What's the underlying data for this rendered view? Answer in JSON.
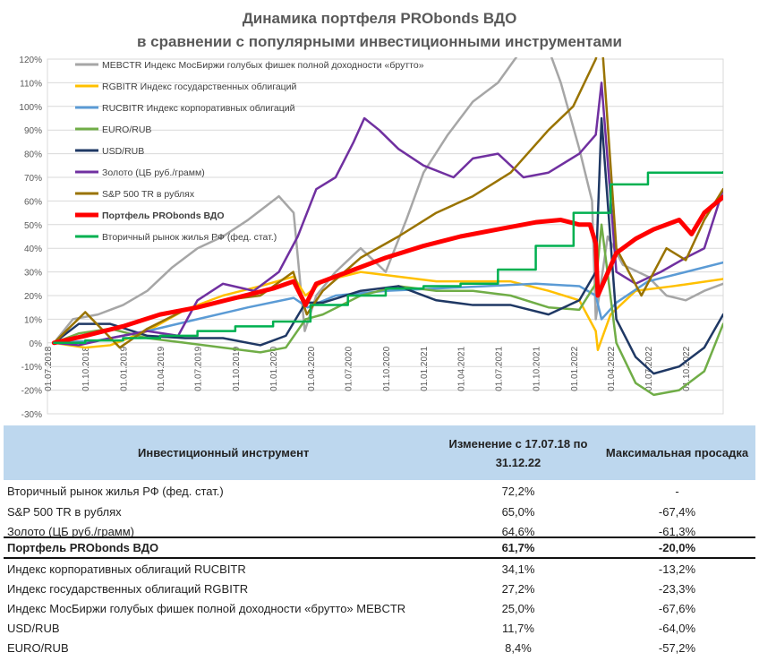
{
  "titles": {
    "line1": "Динамика портфеля PRObonds ВДО",
    "line2": "в сравнении с популярными инвестиционными инструментами"
  },
  "chart_data": {
    "type": "line",
    "ylim": [
      -30,
      120
    ],
    "yticks": [
      "120%",
      "110%",
      "100%",
      "90%",
      "80%",
      "70%",
      "60%",
      "50%",
      "40%",
      "30%",
      "20%",
      "10%",
      "0%",
      "-10%",
      "-20%",
      "-30%"
    ],
    "ytick_values": [
      120,
      110,
      100,
      90,
      80,
      70,
      60,
      50,
      40,
      30,
      20,
      10,
      0,
      -10,
      -20,
      -30
    ],
    "xlim": [
      "2018-07-01",
      "2022-12-31"
    ],
    "xticks": [
      "01.07.2018",
      "01.10.2018",
      "01.01.2019",
      "01.04.2019",
      "01.07.2019",
      "01.10.2019",
      "01.01.2020",
      "01.04.2020",
      "01.07.2020",
      "01.10.2020",
      "01.01.2021",
      "01.04.2021",
      "01.07.2021",
      "01.10.2021",
      "01.01.2022",
      "01.04.2022",
      "01.07.2022",
      "01.10.2022"
    ],
    "legend_position": "top-left",
    "series": [
      {
        "name": "MEBCTR Индекс МосБиржи голубых фишек полной доходности «брутто»",
        "color": "#a6a6a6",
        "width": 2.5,
        "x": [
          "2018-07-17",
          "2018-09-01",
          "2018-11-01",
          "2019-01-01",
          "2019-03-01",
          "2019-05-01",
          "2019-07-01",
          "2019-09-01",
          "2019-11-01",
          "2020-01-15",
          "2020-02-20",
          "2020-03-18",
          "2020-04-15",
          "2020-06-01",
          "2020-08-01",
          "2020-10-01",
          "2020-11-20",
          "2021-01-01",
          "2021-03-01",
          "2021-05-01",
          "2021-07-01",
          "2021-09-01",
          "2021-10-20",
          "2021-12-01",
          "2022-01-15",
          "2022-02-15",
          "2022-02-24",
          "2022-03-25",
          "2022-05-01",
          "2022-07-01",
          "2022-08-15",
          "2022-10-01",
          "2022-11-15",
          "2022-12-31"
        ],
        "y": [
          0,
          10,
          12,
          16,
          22,
          32,
          40,
          45,
          52,
          62,
          55,
          5,
          20,
          30,
          40,
          30,
          52,
          72,
          88,
          102,
          110,
          125,
          130,
          110,
          82,
          60,
          10,
          45,
          33,
          28,
          20,
          18,
          22,
          25
        ]
      },
      {
        "name": "RGBITR Индекс государственных облигаций",
        "color": "#ffc000",
        "width": 2.5,
        "x": [
          "2018-07-17",
          "2018-10-01",
          "2018-12-01",
          "2019-03-01",
          "2019-06-01",
          "2019-09-01",
          "2019-12-01",
          "2020-02-20",
          "2020-03-20",
          "2020-05-01",
          "2020-08-01",
          "2020-11-01",
          "2021-02-01",
          "2021-05-01",
          "2021-08-01",
          "2021-11-01",
          "2022-01-15",
          "2022-02-24",
          "2022-03-01",
          "2022-04-01",
          "2022-06-01",
          "2022-09-01",
          "2022-12-31"
        ],
        "y": [
          0,
          -2,
          -1,
          5,
          14,
          20,
          24,
          28,
          20,
          26,
          30,
          28,
          26,
          26,
          26,
          22,
          18,
          5,
          -3,
          12,
          22,
          24,
          27
        ]
      },
      {
        "name": "RUCBITR Индекс корпоративных облигаций",
        "color": "#5b9bd5",
        "width": 2.5,
        "x": [
          "2018-07-17",
          "2018-11-01",
          "2019-03-01",
          "2019-07-01",
          "2019-11-01",
          "2020-02-20",
          "2020-03-25",
          "2020-06-01",
          "2020-10-01",
          "2021-02-01",
          "2021-06-01",
          "2021-10-01",
          "2022-01-15",
          "2022-02-24",
          "2022-03-10",
          "2022-04-15",
          "2022-07-01",
          "2022-10-01",
          "2022-12-31"
        ],
        "y": [
          0,
          1,
          5,
          10,
          15,
          19,
          15,
          20,
          22,
          23,
          24,
          25,
          24,
          20,
          10,
          17,
          26,
          30,
          34
        ]
      },
      {
        "name": "EURO/RUB",
        "color": "#70ad47",
        "width": 2.5,
        "x": [
          "2018-07-17",
          "2018-09-15",
          "2018-12-01",
          "2019-03-01",
          "2019-06-01",
          "2019-09-01",
          "2019-12-01",
          "2020-02-01",
          "2020-03-20",
          "2020-05-01",
          "2020-08-01",
          "2020-11-01",
          "2021-02-01",
          "2021-05-01",
          "2021-08-01",
          "2021-11-01",
          "2022-01-15",
          "2022-02-24",
          "2022-03-10",
          "2022-04-15",
          "2022-06-01",
          "2022-07-15",
          "2022-09-15",
          "2022-11-15",
          "2022-12-31"
        ],
        "y": [
          0,
          4,
          6,
          2,
          0,
          -2,
          -4,
          -2,
          10,
          12,
          20,
          24,
          22,
          22,
          20,
          15,
          14,
          25,
          50,
          0,
          -17,
          -22,
          -20,
          -12,
          8
        ]
      },
      {
        "name": "USD/RUB",
        "color": "#1f3864",
        "width": 2.5,
        "x": [
          "2018-07-17",
          "2018-09-15",
          "2018-12-01",
          "2019-03-01",
          "2019-06-01",
          "2019-09-01",
          "2019-12-01",
          "2020-02-01",
          "2020-03-20",
          "2020-05-01",
          "2020-08-01",
          "2020-11-01",
          "2021-02-01",
          "2021-05-01",
          "2021-08-01",
          "2021-11-01",
          "2022-01-15",
          "2022-02-24",
          "2022-03-10",
          "2022-04-15",
          "2022-06-01",
          "2022-07-15",
          "2022-09-15",
          "2022-11-15",
          "2022-12-31"
        ],
        "y": [
          0,
          8,
          8,
          3,
          2,
          2,
          -1,
          3,
          17,
          17,
          22,
          24,
          18,
          16,
          16,
          12,
          18,
          30,
          95,
          10,
          -6,
          -13,
          -10,
          -2,
          12
        ]
      },
      {
        "name": "Золото (ЦБ руб./грамм)",
        "color": "#7030a0",
        "width": 2.5,
        "x": [
          "2018-07-17",
          "2018-09-15",
          "2018-12-01",
          "2019-03-01",
          "2019-05-15",
          "2019-07-01",
          "2019-09-01",
          "2019-11-15",
          "2020-01-15",
          "2020-03-01",
          "2020-04-15",
          "2020-06-01",
          "2020-07-15",
          "2020-08-10",
          "2020-09-15",
          "2020-11-01",
          "2021-01-01",
          "2021-03-15",
          "2021-05-01",
          "2021-07-01",
          "2021-09-01",
          "2021-11-01",
          "2022-01-15",
          "2022-02-24",
          "2022-03-10",
          "2022-04-15",
          "2022-06-01",
          "2022-08-01",
          "2022-10-01",
          "2022-11-15",
          "2022-12-31"
        ],
        "y": [
          0,
          -1,
          2,
          5,
          3,
          18,
          25,
          22,
          30,
          45,
          65,
          70,
          85,
          95,
          90,
          82,
          75,
          70,
          78,
          80,
          70,
          72,
          80,
          88,
          110,
          30,
          25,
          30,
          36,
          40,
          65
        ]
      },
      {
        "name": "S&P 500 TR в рублях",
        "color": "#997300",
        "width": 2.5,
        "x": [
          "2018-07-17",
          "2018-10-01",
          "2018-12-24",
          "2019-03-01",
          "2019-06-01",
          "2019-09-01",
          "2019-12-01",
          "2020-02-19",
          "2020-03-23",
          "2020-05-01",
          "2020-08-01",
          "2020-11-01",
          "2021-02-01",
          "2021-05-01",
          "2021-08-01",
          "2021-11-01",
          "2021-12-31",
          "2022-02-24",
          "2022-03-10",
          "2022-04-15",
          "2022-06-15",
          "2022-08-15",
          "2022-10-01",
          "2022-11-15",
          "2022-12-31"
        ],
        "y": [
          0,
          13,
          -2,
          6,
          14,
          18,
          20,
          30,
          12,
          22,
          36,
          45,
          55,
          62,
          72,
          90,
          100,
          120,
          130,
          40,
          20,
          40,
          35,
          52,
          65
        ]
      },
      {
        "name": "Портфель PRObonds ВДО",
        "color": "#ff0000",
        "width": 5,
        "x": [
          "2018-07-17",
          "2018-10-01",
          "2019-01-01",
          "2019-04-01",
          "2019-07-01",
          "2019-10-01",
          "2020-01-01",
          "2020-02-20",
          "2020-03-20",
          "2020-04-15",
          "2020-07-01",
          "2020-10-01",
          "2021-01-01",
          "2021-04-01",
          "2021-07-01",
          "2021-10-01",
          "2021-12-01",
          "2022-01-15",
          "2022-02-10",
          "2022-02-24",
          "2022-03-01",
          "2022-04-15",
          "2022-06-01",
          "2022-07-15",
          "2022-09-15",
          "2022-10-15",
          "2022-11-15",
          "2022-12-31"
        ],
        "y": [
          0,
          3,
          7,
          12,
          15,
          19,
          23,
          26,
          16,
          25,
          30,
          36,
          41,
          45,
          48,
          51,
          52,
          50,
          50,
          42,
          20,
          38,
          44,
          48,
          52,
          46,
          55,
          61.7
        ]
      },
      {
        "name": "Вторичный рынок жилья РФ (фед. стат.)",
        "color": "#00b050",
        "width": 2.5,
        "step": true,
        "x": [
          "2018-07-17",
          "2018-10-01",
          "2019-01-01",
          "2019-04-01",
          "2019-07-01",
          "2019-10-01",
          "2020-01-01",
          "2020-04-01",
          "2020-07-01",
          "2020-10-01",
          "2021-01-01",
          "2021-04-01",
          "2021-07-01",
          "2021-10-01",
          "2022-01-01",
          "2022-04-01",
          "2022-07-01",
          "2022-10-01",
          "2022-12-31"
        ],
        "y": [
          0,
          1,
          2,
          3,
          5,
          7,
          9,
          16,
          20,
          23,
          24,
          25,
          31,
          41,
          55,
          67,
          72,
          72,
          72.2
        ]
      }
    ]
  },
  "table": {
    "headers": {
      "instrument": "Инвестиционный инструмент",
      "change_line1": "Изменение с 17.07.18 по",
      "change_line2": "31.12.22",
      "drawdown": "Максимальная просадка"
    },
    "rows": [
      {
        "name": "Вторичный рынок жилья РФ (фед. стат.)",
        "change": "72,2%",
        "drawdown": "-",
        "bold": false
      },
      {
        "name": "S&P 500 TR в рублях",
        "change": "65,0%",
        "drawdown": "-67,4%",
        "bold": false
      },
      {
        "name": "Золото (ЦБ руб./грамм)",
        "change": "64,6%",
        "drawdown": "-61,3%",
        "bold": false
      },
      {
        "name": "Портфель PRObonds ВДО",
        "change": "61,7%",
        "drawdown": "-20,0%",
        "bold": true
      },
      {
        "name": "Индекс корпоративных облигаций RUCBITR",
        "change": "34,1%",
        "drawdown": "-13,2%",
        "bold": false
      },
      {
        "name": "Индекс государственных облигаций RGBITR",
        "change": "27,2%",
        "drawdown": "-23,3%",
        "bold": false
      },
      {
        "name": "Индекс МосБиржи голубых фишек полной доходности «брутто» MEBCTR",
        "change": "25,0%",
        "drawdown": "-67,6%",
        "bold": false
      },
      {
        "name": "USD/RUB",
        "change": "11,7%",
        "drawdown": "-64,0%",
        "bold": false
      },
      {
        "name": "EURO/RUB",
        "change": "8,4%",
        "drawdown": "-57,2%",
        "bold": false
      }
    ]
  }
}
